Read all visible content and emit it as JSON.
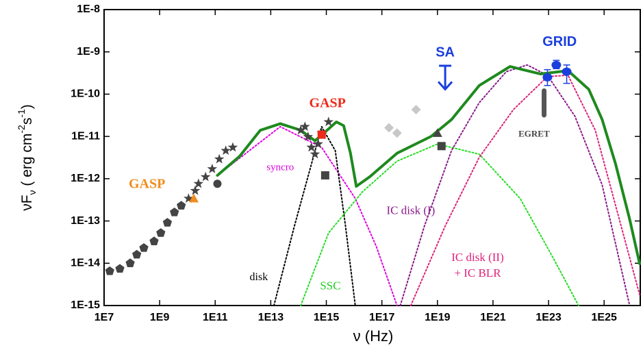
{
  "chart_data": {
    "type": "scatter",
    "x_label": "ν (Hz)",
    "y_label": [
      {
        "text": "νF",
        "shift": "none"
      },
      {
        "text": "ν",
        "shift": "sub"
      },
      {
        "text": " ( erg cm",
        "shift": "none"
      },
      {
        "text": "-2",
        "shift": "super"
      },
      {
        "text": "s",
        "shift": "none"
      },
      {
        "text": "-1",
        "shift": "super"
      },
      {
        "text": ")",
        "shift": "none"
      }
    ],
    "xscale": "log",
    "yscale": "log",
    "xlim": [
      10000000.0,
      2e+26
    ],
    "ylim": [
      1e-15,
      1e-08
    ],
    "xticks": [
      {
        "value": 10000000.0,
        "label": "1E7"
      },
      {
        "value": 1000000000.0,
        "label": "1E9"
      },
      {
        "value": 100000000000.0,
        "label": "1E11"
      },
      {
        "value": 10000000000000.0,
        "label": "1E13"
      },
      {
        "value": 1000000000000000.0,
        "label": "1E15"
      },
      {
        "value": 1e+17,
        "label": "1E17"
      },
      {
        "value": 1e+19,
        "label": "1E19"
      },
      {
        "value": 1e+21,
        "label": "1E21"
      },
      {
        "value": 1e+23,
        "label": "1E23"
      },
      {
        "value": 1e+25,
        "label": "1E25"
      }
    ],
    "yticks": [
      {
        "value": 1e-08,
        "label": "1E-8"
      },
      {
        "value": 1e-09,
        "label": "1E-9"
      },
      {
        "value": 1e-10,
        "label": "1E-10"
      },
      {
        "value": 1e-11,
        "label": "1E-11"
      },
      {
        "value": 1e-12,
        "label": "1E-12"
      },
      {
        "value": 1e-13,
        "label": "1E-13"
      },
      {
        "value": 1e-14,
        "label": "1E-14"
      },
      {
        "value": 1e-15,
        "label": "1E-15"
      }
    ],
    "lines": [
      {
        "color": "#e000e0",
        "style": "dotted",
        "x": [
          120000000000.0,
          22000000000000.0,
          680000000000000.0,
          1.1e+16,
          6.3e+16,
          3.5e+17
        ],
        "y": [
          1.2e-12,
          1.7e-11,
          5.5e-12,
          3.4e-13,
          2.5e-14,
          1e-15
        ]
      },
      {
        "color": "#000000",
        "style": "dotted",
        "x": [
          13000000000000.0,
          71000000000000.0,
          290000000000000.0,
          680000000000000.0,
          2100000000000000.0,
          4900000000000000.0,
          1.1e+16
        ],
        "y": [
          1e-15,
          7.6e-14,
          2.2e-12,
          1.7e-11,
          4.6e-12,
          7.6e-14,
          1e-15
        ]
      },
      {
        "color": "#22dd22",
        "style": "dotted",
        "x": [
          120000000000000.0,
          1200000000000000.0,
          2e+16,
          3.5e+17,
          1e+19,
          3.2e+20,
          9.5e+21,
          1.6e+23,
          1.2e+24
        ],
        "y": [
          1e-15,
          5.2e-14,
          4.9e-13,
          2.6e-12,
          6.6e-12,
          3.8e-12,
          3.4e-13,
          1.2e-14,
          1e-15
        ]
      },
      {
        "color": "#8a1a8a",
        "style": "dotted",
        "x": [
          4.6e+17,
          3.4e+18,
          3.2e+19,
          3.2e+20,
          3e+21,
          1.7e+22,
          9.1e+22,
          8.9e+23,
          8.5e+24,
          8.3e+25
        ],
        "y": [
          1e-15,
          7.6e-14,
          4.6e-12,
          6.3e-11,
          3.4e-10,
          4.9e-10,
          2.8e-10,
          3e-11,
          7.1e-13,
          1e-15
        ]
      },
      {
        "color": "#e0207a",
        "style": "dotted",
        "x": [
          1.1e+18,
          1.9e+19,
          3.2e+20,
          5.4e+21,
          9.1e+22,
          5e+23,
          4.8e+24,
          2.6e+25,
          1.9e+26
        ],
        "y": [
          1e-15,
          7.6e-14,
          3.2e-12,
          4.3e-11,
          2.6e-10,
          2.8e-10,
          1.4e-11,
          2.3e-13,
          1.8e-15
        ]
      },
      {
        "color": "#1e8a1e",
        "style": "solid",
        "x": [
          120000000000.0,
          760000000000.0,
          4200000000000.0,
          22000000000000.0,
          120000000000000.0,
          390000000000000.0,
          1200000000000000.0,
          2300000000000000.0,
          4200000000000000.0,
          7400000000000000.0,
          1.2e+16,
          3.6e+16,
          3.5e+17,
          5.9e+18,
          3.2e+19,
          3.2e+20,
          4.1e+21,
          5.1e+22,
          5e+23,
          2.8e+24,
          8.5e+24,
          2.6e+25,
          8.3e+25,
          1.9e+26
        ],
        "y": [
          1.2e-12,
          3.4e-12,
          1.4e-11,
          2e-11,
          1.4e-11,
          7.9e-12,
          1.5e-11,
          2.2e-11,
          1.8e-11,
          4e-12,
          6.6e-13,
          1.1e-12,
          4e-12,
          1e-11,
          2.5e-11,
          1.6e-10,
          4.5e-10,
          3e-10,
          3.6e-10,
          1.3e-10,
          2.5e-11,
          2.2e-12,
          1.1e-13,
          9.8e-15
        ]
      }
    ],
    "points": [
      {
        "marker": "pentagon",
        "color": "#444444",
        "x": [
          16000000.0,
          37000000.0,
          87000000.0,
          150000000.0,
          270000000.0,
          630000000.0,
          1100000000.0,
          1900000000.0,
          3400000000.0,
          6000000000.0
        ],
        "y": [
          6.5e-15,
          7.4e-15,
          1e-14,
          1.6e-14,
          2.3e-14,
          3.3e-14,
          5.2e-14,
          9.1e-14,
          1.6e-13,
          2.3e-13
        ]
      },
      {
        "marker": "star",
        "color": "#444444",
        "x": [
          11000000000.0,
          19000000000.0,
          25000000000.0,
          45000000000.0,
          78000000000.0,
          140000000000.0,
          240000000000.0,
          430000000000.0,
          120000000000000.0,
          170000000000000.0,
          220000000000000.0,
          290000000000000.0,
          390000000000000.0,
          510000000000000.0,
          680000000000000.0,
          1200000000000000.0
        ],
        "y": [
          3.4e-13,
          5.2e-13,
          7.6e-13,
          1.1e-12,
          1.7e-12,
          2.9e-12,
          4.6e-12,
          5.5e-12,
          1.4e-11,
          1.7e-11,
          9.8e-12,
          5.5e-12,
          3.8e-12,
          6.6e-12,
          1.2e-11,
          2.2e-11
        ]
      },
      {
        "marker": "circle",
        "color": "#444444",
        "x": [
          120000000000.0
        ],
        "y": [
          7.6e-13
        ]
      },
      {
        "marker": "square",
        "color": "#444444",
        "x": [
          910000000000000.0,
          1.4e+19
        ],
        "y": [
          1.2e-12,
          5.9e-12
        ]
      },
      {
        "marker": "triangle",
        "color": "#444444",
        "x": [
          1e+19
        ],
        "y": [
          1.2e-11
        ]
      },
      {
        "marker": "diamond",
        "color": "#c8c8c8",
        "x": [
          1.8e+17,
          3.5e+17,
          1.7e+18
        ],
        "y": [
          1.6e-11,
          1.2e-11,
          4.3e-11
        ]
      },
      {
        "marker": "triangle",
        "color": "#f08c1e",
        "x": [
          17000000000.0
        ],
        "y": [
          3.4e-13
        ]
      },
      {
        "marker": "square",
        "color": "#ee2a1a",
        "x": [
          680000000000000.0
        ],
        "y": [
          1.1e-11
        ]
      }
    ],
    "error_points": {
      "color": "#1a3fdc",
      "x": [
        9.1e+22,
        1.9e+23,
        4.5e+23
      ],
      "y": [
        2.5e-10,
        4.9e-10,
        3.4e-10
      ],
      "y_low": [
        1.6e-10,
        4e-10,
        1.8e-10
      ],
      "y_high": [
        3.8e-10,
        6.3e-10,
        4.9e-10
      ]
    },
    "upper_limit": {
      "color": "#1a3fdc",
      "x": 1.9e+19,
      "y": 4.7e-10,
      "arrow_to": 1.3e-10
    },
    "range_bar": {
      "color": "#555555",
      "x": 6.9e+22,
      "y_low": 3.2e-11,
      "y_high": 1.2e-10
    },
    "annotations": [
      {
        "text": "GASP",
        "x": 350000000.0,
        "y": 7.1e-13,
        "color": "#f08c1e",
        "font": "serif",
        "bold": true,
        "size": 20
      },
      {
        "text": "GASP",
        "x": 1100000000000000.0,
        "y": 5.8e-11,
        "color": "#ee2a1a",
        "font": "serif",
        "bold": true,
        "size": 20
      },
      {
        "text": "SA",
        "x": 1.9e+19,
        "y": 9.5e-10,
        "color": "#1a3fdc",
        "font": "sans",
        "bold": true,
        "size": 20
      },
      {
        "text": "GRID",
        "x": 2.5e+23,
        "y": 1.7e-09,
        "color": "#1a3fdc",
        "font": "sans",
        "bold": true,
        "size": 20
      },
      {
        "text": "EGRET",
        "x": 3e+22,
        "y": 1.1e-11,
        "color": "#444444",
        "font": "serif",
        "bold": true,
        "size": 13
      },
      {
        "text": "syncro",
        "x": 22000000000000.0,
        "y": 1.8e-12,
        "color": "#e000e0",
        "font": "serif",
        "bold": false,
        "size": 15
      },
      {
        "text": "disk",
        "x": 3700000000000.0,
        "y": 4.6e-15,
        "color": "#000000",
        "font": "serif",
        "bold": false,
        "size": 16
      },
      {
        "text": "SSC",
        "x": 1400000000000000.0,
        "y": 2.8e-15,
        "color": "#22cc22",
        "font": "serif",
        "bold": false,
        "size": 17
      },
      {
        "text": "IC disk (I)",
        "x": 1.1e+18,
        "y": 1.7e-13,
        "color": "#8a1a8a",
        "font": "serif",
        "bold": false,
        "size": 17
      },
      {
        "text": "IC disk (II)",
        "x": 2.8e+20,
        "y": 1.3e-14,
        "color": "#e0207a",
        "font": "serif",
        "bold": false,
        "size": 17
      },
      {
        "text": "+ IC BLR",
        "x": 2.8e+20,
        "y": 5.5e-15,
        "color": "#e0207a",
        "font": "serif",
        "bold": false,
        "size": 17
      }
    ]
  }
}
